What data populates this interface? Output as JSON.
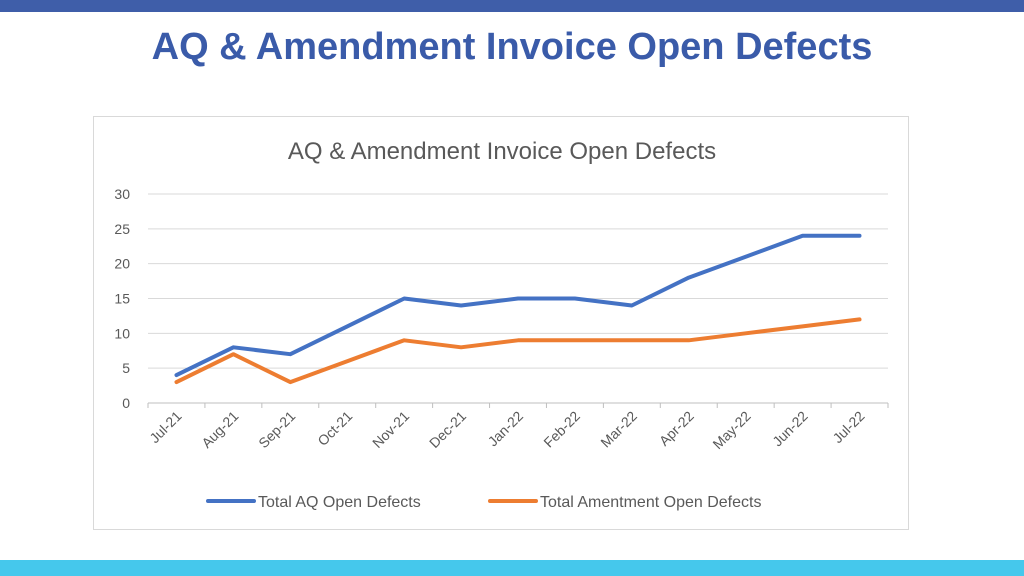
{
  "slide": {
    "title": "AQ & Amendment Invoice Open Defects",
    "title_color": "#3A5BA9",
    "top_bar_color": "#3F5EA9",
    "bottom_bar_color": "#45C8EC"
  },
  "chart_data": {
    "type": "line",
    "title": "AQ & Amendment  Invoice Open Defects",
    "categories": [
      "Jul-21",
      "Aug-21",
      "Sep-21",
      "Oct-21",
      "Nov-21",
      "Dec-21",
      "Jan-22",
      "Feb-22",
      "Mar-22",
      "Apr-22",
      "May-22",
      "Jun-22",
      "Jul-22"
    ],
    "series": [
      {
        "name": "Total AQ Open Defects",
        "color": "#4472C4",
        "values": [
          4,
          8,
          7,
          11,
          15,
          14,
          15,
          15,
          14,
          18,
          21,
          24,
          24
        ]
      },
      {
        "name": "Total Amentment Open Defects",
        "color": "#ED7D31",
        "values": [
          3,
          7,
          3,
          6,
          9,
          8,
          9,
          9,
          9,
          9,
          10,
          11,
          12
        ]
      }
    ],
    "xlabel": "",
    "ylabel": "",
    "ylim": [
      0,
      30
    ],
    "yticks": [
      0,
      5,
      10,
      15,
      20,
      25,
      30
    ],
    "grid": true,
    "legend_position": "bottom"
  }
}
